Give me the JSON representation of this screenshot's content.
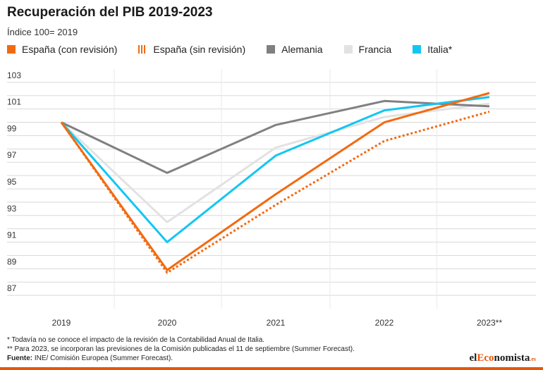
{
  "chart_data": {
    "type": "line",
    "title": "Recuperación del PIB 2019-2023",
    "subtitle": "Índice 100= 2019",
    "categories": [
      "2019",
      "2020",
      "2021",
      "2022",
      "2023**"
    ],
    "y_ticks": [
      "103",
      "101",
      "99",
      "97",
      "95",
      "93",
      "91",
      "89",
      "87"
    ],
    "ylim": [
      86,
      104
    ],
    "grid": true,
    "legend_position": "top",
    "series": [
      {
        "name": "España (con revisión)",
        "color": "#f26a10",
        "style": "solid",
        "values": [
          100,
          88.9,
          94.6,
          100.0,
          102.2
        ]
      },
      {
        "name": "España (sin revisión)",
        "color": "#f26a10",
        "style": "dotted",
        "values": [
          100,
          88.7,
          93.8,
          98.6,
          100.8
        ]
      },
      {
        "name": "Alemania",
        "color": "#808080",
        "style": "solid",
        "values": [
          100,
          96.2,
          99.8,
          101.6,
          101.2
        ]
      },
      {
        "name": "Francia",
        "color": "#e2e2e2",
        "style": "solid",
        "values": [
          100,
          92.5,
          98.1,
          100.4,
          101.4
        ]
      },
      {
        "name": "Italia*",
        "color": "#13c6f2",
        "style": "solid",
        "values": [
          100,
          91.0,
          97.5,
          100.9,
          101.9
        ]
      }
    ]
  },
  "notes": {
    "note1": "* Todavía no se conoce el impacto de la revisión de la Contabilidad Anual de Italia.",
    "note2": "** Para 2023, se incorporan las previsiones de la Comisión publicadas el 11 de septiembre (Summer Forecast).",
    "source_label": "Fuente:",
    "source_text": " INE/ Comisión Europea (Summer Forecast)."
  },
  "logo": {
    "part1": "el",
    "part2": "Eco",
    "part3": "nomista",
    "tld": ".es"
  }
}
